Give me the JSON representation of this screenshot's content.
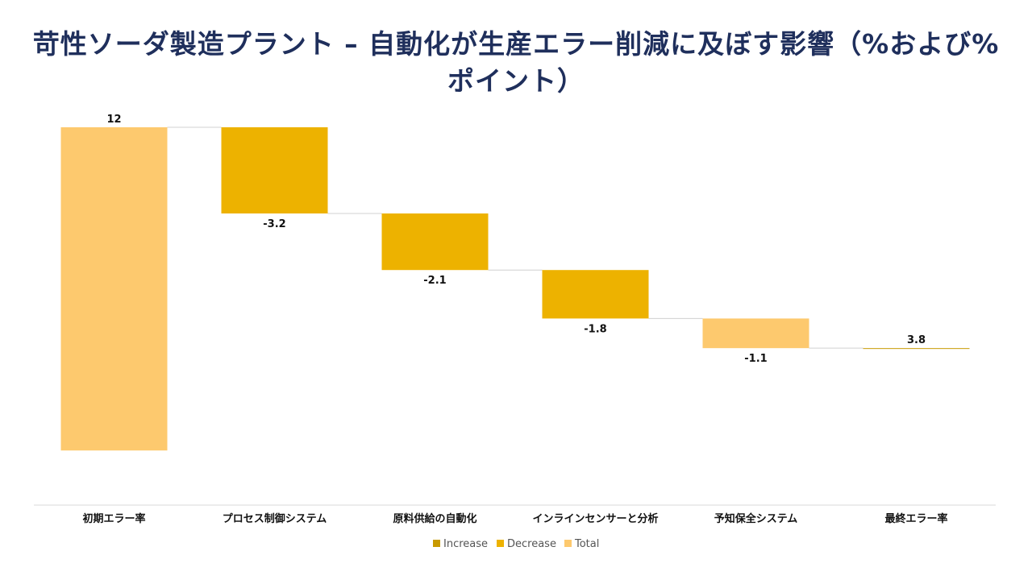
{
  "chart_data": {
    "type": "waterfall",
    "title": "苛性ソーダ製造プラント – 自動化が生産エラー削減に及ぼす影響（%および%ポイント）",
    "categories": [
      "初期エラー率",
      "プロセス制御システム",
      "原料供給の自動化",
      "インラインセンサーと分析",
      "予知保全システム",
      "最終エラー率"
    ],
    "values": [
      12,
      -3.2,
      -2.1,
      -1.8,
      -1.1,
      3.8
    ],
    "labels": [
      "12",
      "-3.2",
      "-2.1",
      "-1.8",
      "-1.1",
      "3.8"
    ],
    "kinds": [
      "total",
      "decrease",
      "decrease",
      "decrease",
      "total",
      "increase"
    ],
    "ylim": [
      -1.1,
      12
    ],
    "grid": false,
    "legend": {
      "position": "bottom",
      "entries": [
        {
          "key": "increase",
          "name": "Increase",
          "color": "#c89a00"
        },
        {
          "key": "decrease",
          "name": "Decrease",
          "color": "#edb200"
        },
        {
          "key": "total",
          "name": "Total",
          "color": "#fdc96e"
        }
      ]
    }
  }
}
